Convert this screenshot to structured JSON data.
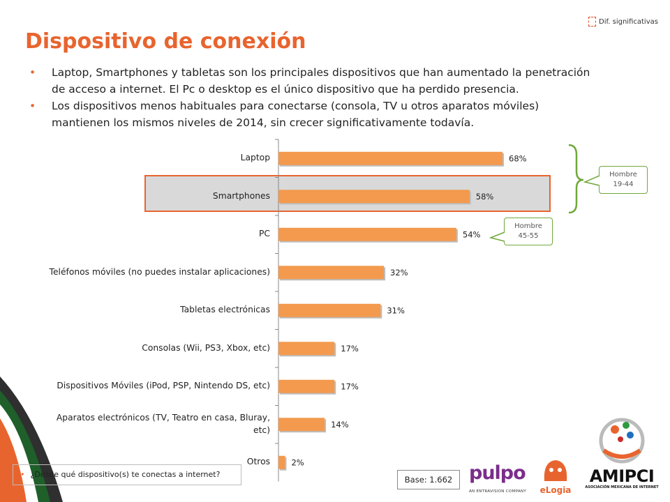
{
  "legend": {
    "label": "Dif. significativas",
    "color": "#e04a22"
  },
  "title": "Dispositivo de conexión",
  "bullets": [
    "Laptop, Smartphones y tabletas son los principales dispositivos que han aumentado la penetración de acceso a internet. El Pc o desktop es el único dispositivo que ha perdido presencia.",
    "Los dispositivos menos habituales para conectarse (consola, TV u otros aparatos móviles) mantienen los mismos niveles de 2014, sin crecer significativamente todavía."
  ],
  "chart_data": {
    "type": "bar",
    "orientation": "horizontal",
    "categories": [
      "Laptop",
      "Smartphones",
      "PC",
      "Teléfonos móviles (no puedes instalar aplicaciones)",
      "Tabletas electrónicas",
      "Consolas (Wii,  PS3, Xbox, etc)",
      "Dispositivos Móviles (iPod, PSP, Nintendo DS, etc)",
      "Aparatos electrónicos (TV, Teatro en casa, Bluray, etc)",
      "Otros"
    ],
    "values": [
      68,
      58,
      54,
      32,
      31,
      17,
      17,
      14,
      2
    ],
    "value_labels": [
      "68%",
      "58%",
      "54%",
      "32%",
      "31%",
      "17%",
      "17%",
      "14%",
      "2%"
    ],
    "highlighted_category": "Smartphones",
    "bar_color": "#f39a4e",
    "xlim": [
      0,
      100
    ]
  },
  "callouts": {
    "hombre_19_44": {
      "line1": "Hombre",
      "line2": "19-44",
      "color": "#70a83c"
    },
    "hombre_45_55": {
      "line1": "Hombre",
      "line2": "45-55",
      "color": "#70a83c"
    }
  },
  "question": "¿Desde qué dispositivo(s) te conectas a internet?",
  "base": "Base: 1.662",
  "logos": {
    "pulpo": {
      "text": "pulpo",
      "subtitle": "AN ENTRAVISION COMPANY",
      "color": "#7b2e8a"
    },
    "elogia": {
      "text": "eLogia",
      "color": "#e8642e"
    },
    "amipci": {
      "text": "AMIPCI",
      "subtitle": "ASOCIACIÓN MEXICANA DE INTERNET",
      "color": "#111111"
    }
  }
}
